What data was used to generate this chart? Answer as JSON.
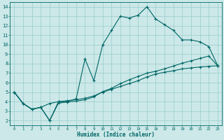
{
  "xlabel": "Humidex (Indice chaleur)",
  "bg_color": "#cce8e8",
  "grid_color": "#99cccc",
  "line_color": "#006666",
  "xlim": [
    -0.5,
    23.5
  ],
  "ylim": [
    1.5,
    14.5
  ],
  "xticks": [
    0,
    1,
    2,
    3,
    4,
    5,
    6,
    7,
    8,
    9,
    10,
    11,
    12,
    13,
    14,
    15,
    16,
    17,
    18,
    19,
    20,
    21,
    22,
    23
  ],
  "yticks": [
    2,
    3,
    4,
    5,
    6,
    7,
    8,
    9,
    10,
    11,
    12,
    13,
    14
  ],
  "line1_x": [
    0,
    1,
    2,
    3,
    4,
    5,
    6,
    7,
    8,
    9,
    10,
    11,
    12,
    13,
    14,
    15,
    16,
    17,
    18,
    19,
    20,
    21,
    22,
    23
  ],
  "line1_y": [
    5.0,
    3.8,
    3.2,
    3.4,
    2.0,
    4.0,
    4.0,
    4.3,
    8.5,
    6.2,
    10.0,
    11.5,
    13.0,
    12.8,
    13.1,
    14.0,
    12.7,
    12.1,
    11.5,
    10.5,
    10.5,
    10.3,
    9.8,
    7.8
  ],
  "line2_x": [
    0,
    1,
    2,
    3,
    4,
    5,
    6,
    7,
    8,
    9,
    10,
    11,
    12,
    13,
    14,
    15,
    16,
    17,
    18,
    19,
    20,
    21,
    22,
    23
  ],
  "line2_y": [
    5.0,
    3.8,
    3.2,
    3.4,
    3.8,
    4.0,
    4.1,
    4.2,
    4.35,
    4.6,
    5.0,
    5.3,
    5.6,
    5.9,
    6.2,
    6.6,
    6.9,
    7.1,
    7.25,
    7.45,
    7.55,
    7.65,
    7.72,
    7.78
  ],
  "line3_x": [
    0,
    1,
    2,
    3,
    4,
    5,
    6,
    7,
    8,
    9,
    10,
    11,
    12,
    13,
    14,
    15,
    16,
    17,
    18,
    19,
    20,
    21,
    22,
    23
  ],
  "line3_y": [
    5.0,
    3.8,
    3.2,
    3.4,
    2.0,
    3.85,
    3.95,
    4.05,
    4.2,
    4.5,
    5.05,
    5.4,
    5.9,
    6.3,
    6.65,
    7.0,
    7.2,
    7.45,
    7.75,
    8.05,
    8.3,
    8.55,
    8.8,
    7.78
  ]
}
